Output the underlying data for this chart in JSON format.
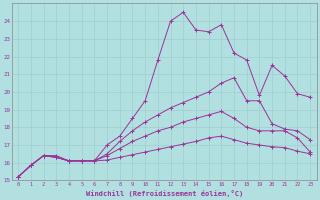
{
  "xlabel": "Windchill (Refroidissement éolien,°C)",
  "background_color": "#b2e0e0",
  "grid_color": "#9ecece",
  "line_color": "#993399",
  "xlim": [
    -0.5,
    23.5
  ],
  "ylim": [
    15,
    25
  ],
  "yticks": [
    15,
    16,
    17,
    18,
    19,
    20,
    21,
    22,
    23,
    24
  ],
  "xticks": [
    0,
    1,
    2,
    3,
    4,
    5,
    6,
    7,
    8,
    9,
    10,
    11,
    12,
    13,
    14,
    15,
    16,
    17,
    18,
    19,
    20,
    21,
    22,
    23
  ],
  "series": [
    [
      15.2,
      15.85,
      16.4,
      16.4,
      16.1,
      16.1,
      16.1,
      17.0,
      17.5,
      18.5,
      19.5,
      21.8,
      24.0,
      24.5,
      23.5,
      23.4,
      23.8,
      22.2,
      21.8,
      19.8,
      21.5,
      20.9,
      19.9,
      19.7
    ],
    [
      15.2,
      15.85,
      16.4,
      16.3,
      16.1,
      16.1,
      16.1,
      16.5,
      17.2,
      17.8,
      18.3,
      18.7,
      19.1,
      19.4,
      19.7,
      20.0,
      20.5,
      20.8,
      19.5,
      19.5,
      18.2,
      17.9,
      17.8,
      17.3
    ],
    [
      15.2,
      15.85,
      16.4,
      16.3,
      16.1,
      16.1,
      16.1,
      16.4,
      16.8,
      17.2,
      17.5,
      17.8,
      18.0,
      18.3,
      18.5,
      18.7,
      18.9,
      18.5,
      18.0,
      17.8,
      17.8,
      17.8,
      17.4,
      16.6
    ],
    [
      15.2,
      15.85,
      16.4,
      16.3,
      16.1,
      16.1,
      16.1,
      16.15,
      16.3,
      16.45,
      16.6,
      16.75,
      16.9,
      17.05,
      17.2,
      17.4,
      17.5,
      17.3,
      17.1,
      17.0,
      16.9,
      16.85,
      16.65,
      16.5
    ]
  ]
}
